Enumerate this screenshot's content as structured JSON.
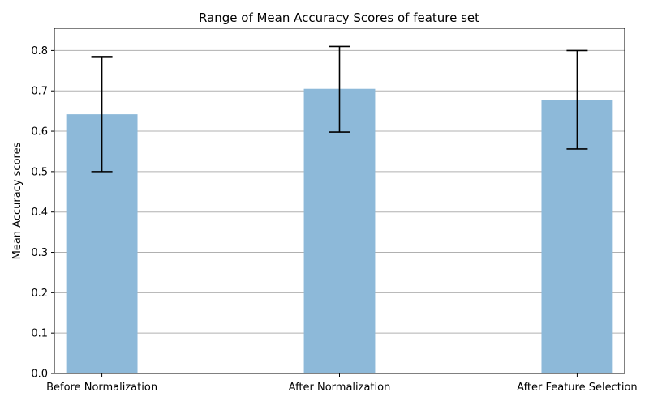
{
  "chart_data": {
    "type": "bar",
    "title": "Range of Mean Accuracy Scores of feature set",
    "xlabel": "",
    "ylabel": "Mean Accuracy scores",
    "categories": [
      "Before Normalization",
      "After Normalization",
      "After Feature Selection"
    ],
    "values": [
      0.642,
      0.705,
      0.678
    ],
    "error_ranges": [
      [
        0.5,
        0.785
      ],
      [
        0.598,
        0.81
      ],
      [
        0.556,
        0.8
      ]
    ],
    "ylim": [
      0,
      0.855
    ],
    "yticks": [
      "0.0",
      "0.1",
      "0.2",
      "0.3",
      "0.4",
      "0.5",
      "0.6",
      "0.7",
      "0.8"
    ],
    "grid": "y-axis only",
    "bar_color": "#8db9d9",
    "error_color": "#000000",
    "grid_color": "#b0b0b0"
  }
}
